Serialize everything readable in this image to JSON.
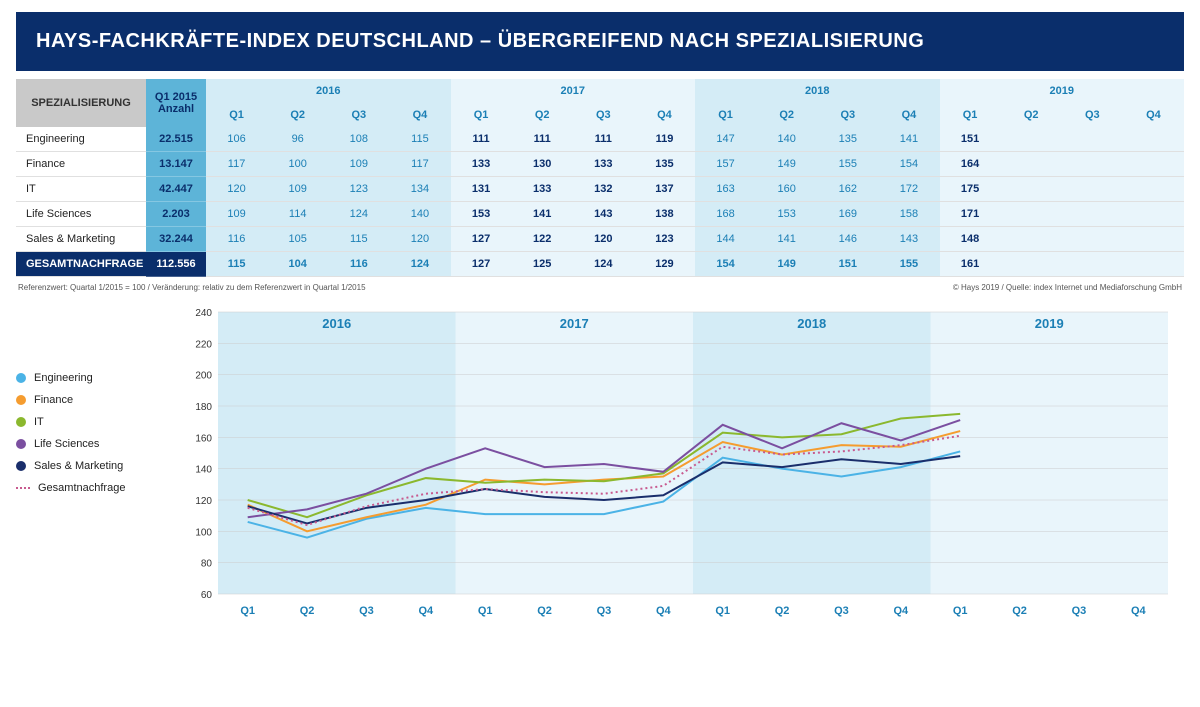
{
  "header": {
    "title": "HAYS-FACHKRÄFTE-INDEX DEUTSCHLAND – ÜBERGREIFEND NACH SPEZIALISIERUNG"
  },
  "table": {
    "spec_label": "SPEZIALISIERUNG",
    "anzahl_label_l1": "Q1 2015",
    "anzahl_label_l2": "Anzahl",
    "years": [
      "2016",
      "2017",
      "2018",
      "2019"
    ],
    "quarters": [
      "Q1",
      "Q2",
      "Q3",
      "Q4"
    ],
    "rows": [
      {
        "label": "Engineering",
        "anzahl": "22.515",
        "vals": [
          "106",
          "96",
          "108",
          "115",
          "111",
          "111",
          "111",
          "119",
          "147",
          "140",
          "135",
          "141",
          "151"
        ]
      },
      {
        "label": "Finance",
        "anzahl": "13.147",
        "vals": [
          "117",
          "100",
          "109",
          "117",
          "133",
          "130",
          "133",
          "135",
          "157",
          "149",
          "155",
          "154",
          "164"
        ]
      },
      {
        "label": "IT",
        "anzahl": "42.447",
        "vals": [
          "120",
          "109",
          "123",
          "134",
          "131",
          "133",
          "132",
          "137",
          "163",
          "160",
          "162",
          "172",
          "175"
        ]
      },
      {
        "label": "Life Sciences",
        "anzahl": "2.203",
        "vals": [
          "109",
          "114",
          "124",
          "140",
          "153",
          "141",
          "143",
          "138",
          "168",
          "153",
          "169",
          "158",
          "171"
        ]
      },
      {
        "label": "Sales & Marketing",
        "anzahl": "32.244",
        "vals": [
          "116",
          "105",
          "115",
          "120",
          "127",
          "122",
          "120",
          "123",
          "144",
          "141",
          "146",
          "143",
          "148"
        ]
      }
    ],
    "total": {
      "label": "GESAMTNACHFRAGE",
      "anzahl": "112.556",
      "vals": [
        "115",
        "104",
        "116",
        "124",
        "127",
        "125",
        "124",
        "129",
        "154",
        "149",
        "151",
        "155",
        "161"
      ]
    }
  },
  "footnote": {
    "left": "Referenzwert: Quartal 1/2015 = 100 / Veränderung: relativ zu dem Referenzwert in Quartal 1/2015",
    "right": "© Hays 2019 / Quelle: index Internet und Mediaforschung GmbH"
  },
  "chart": {
    "type": "line",
    "x_labels": [
      "Q1",
      "Q2",
      "Q3",
      "Q4",
      "Q1",
      "Q2",
      "Q3",
      "Q4",
      "Q1",
      "Q2",
      "Q3",
      "Q4",
      "Q1",
      "Q2",
      "Q3",
      "Q4"
    ],
    "year_bands": [
      "2016",
      "2017",
      "2018",
      "2019"
    ],
    "ylim": [
      60,
      240
    ],
    "ytick_step": 20,
    "yticks": [
      60,
      80,
      100,
      120,
      140,
      160,
      180,
      200,
      220,
      240
    ],
    "band_colors": {
      "2016": "#d4ecf6",
      "2017": "#e9f5fb",
      "2018": "#d4ecf6",
      "2019": "#e9f5fb"
    },
    "series": [
      {
        "name": "Engineering",
        "color": "#4bb3e6",
        "dashed": false,
        "data": [
          106,
          96,
          108,
          115,
          111,
          111,
          111,
          119,
          147,
          140,
          135,
          141,
          151
        ]
      },
      {
        "name": "Finance",
        "color": "#f59c2f",
        "dashed": false,
        "data": [
          117,
          100,
          109,
          117,
          133,
          130,
          133,
          135,
          157,
          149,
          155,
          154,
          164
        ]
      },
      {
        "name": "IT",
        "color": "#8bb82e",
        "dashed": false,
        "data": [
          120,
          109,
          123,
          134,
          131,
          133,
          132,
          137,
          163,
          160,
          162,
          172,
          175
        ]
      },
      {
        "name": "Life Sciences",
        "color": "#7b4fa0",
        "dashed": false,
        "data": [
          109,
          114,
          124,
          140,
          153,
          141,
          143,
          138,
          168,
          153,
          169,
          158,
          171
        ]
      },
      {
        "name": "Sales & Marketing",
        "color": "#1a2e6b",
        "dashed": false,
        "data": [
          116,
          105,
          115,
          120,
          127,
          122,
          120,
          123,
          144,
          141,
          146,
          143,
          148
        ]
      },
      {
        "name": "Gesamtnachfrage",
        "color": "#c85a8f",
        "dashed": true,
        "data": [
          115,
          104,
          116,
          124,
          127,
          125,
          124,
          129,
          154,
          149,
          151,
          155,
          161
        ]
      }
    ],
    "line_width": 2,
    "grid_color": "#cccccc",
    "axis_label_color": "#1b7fb5",
    "background": "#ffffff"
  }
}
